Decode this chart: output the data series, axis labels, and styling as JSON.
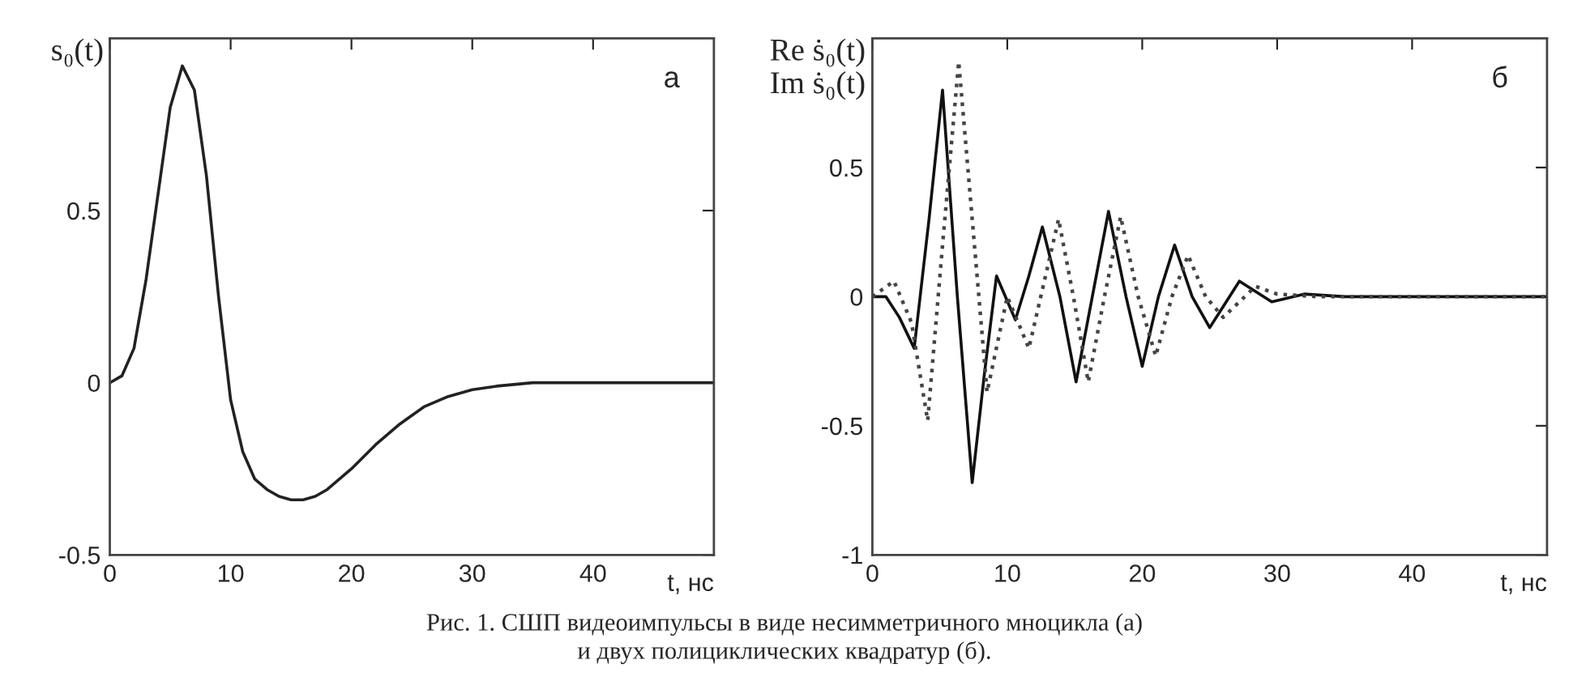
{
  "chart_data": [
    {
      "type": "line",
      "ylabel": "s₀(t)",
      "xlabel": "t, нс",
      "xlim": [
        0,
        50
      ],
      "ylim": [
        -0.5,
        1
      ],
      "xticks": [
        0,
        10,
        20,
        30,
        40
      ],
      "yticks": [
        -0.5,
        0,
        0.5
      ],
      "grid": false,
      "legend": false,
      "series": [
        {
          "color": "#222222",
          "line_style": "solid",
          "x": [
            0,
            1,
            2,
            3,
            4,
            5,
            6,
            7,
            8,
            9,
            10,
            11,
            12,
            13,
            14,
            15,
            16,
            17,
            18,
            20,
            22,
            24,
            26,
            28,
            30,
            32,
            35,
            40,
            50
          ],
          "values": [
            0,
            0.02,
            0.1,
            0.3,
            0.55,
            0.8,
            0.92,
            0.85,
            0.6,
            0.25,
            -0.05,
            -0.2,
            -0.28,
            -0.31,
            -0.33,
            -0.34,
            -0.34,
            -0.33,
            -0.31,
            -0.25,
            -0.18,
            -0.12,
            -0.07,
            -0.04,
            -0.02,
            -0.01,
            0,
            0,
            0
          ]
        }
      ],
      "annotations": [
        "а",
        "Рис. 1. СШП видеоимпульсы в виде несимметричного мноцикла (а)\nи двух полициклических квадратур (б)."
      ]
    },
    {
      "type": "line",
      "ylabel": "Re ṡ₀(t)\nIm ṡ₀(t)",
      "xlabel": "t, нс",
      "xlim": [
        0,
        50
      ],
      "ylim": [
        -1,
        1
      ],
      "xticks": [
        0,
        10,
        20,
        30,
        40
      ],
      "yticks": [
        -1,
        -0.5,
        0,
        0.5
      ],
      "grid": false,
      "legend": false,
      "series": [
        {
          "color": "#111111",
          "line_style": "solid",
          "x": [
            0,
            1,
            2,
            3.1,
            4.2,
            5.2,
            6.3,
            7.4,
            8.3,
            9.2,
            10.6,
            11.6,
            12.6,
            13.9,
            15.1,
            16.3,
            17.5,
            18.8,
            20.0,
            21.2,
            22.4,
            23.7,
            25.0,
            26.1,
            27.2,
            28.4,
            29.6,
            32,
            35,
            50
          ],
          "values": [
            0,
            0.0,
            -0.08,
            -0.2,
            0.3,
            0.8,
            0.0,
            -0.72,
            -0.3,
            0.08,
            -0.09,
            0.08,
            0.27,
            0.0,
            -0.33,
            0.0,
            0.33,
            0.0,
            -0.27,
            0.0,
            0.2,
            0.0,
            -0.12,
            -0.03,
            0.06,
            0.02,
            -0.02,
            0.01,
            0,
            0
          ]
        },
        {
          "color": "#444444",
          "line_style": "dotted",
          "x": [
            0,
            1.6,
            2.9,
            4.1,
            5.2,
            6.4,
            7.4,
            8.5,
            10.0,
            11.6,
            12.7,
            13.8,
            14.9,
            16.0,
            17.2,
            18.4,
            19.7,
            21.0,
            22.2,
            23.4,
            24.7,
            26.0,
            27.2,
            28.4,
            30,
            33,
            50
          ],
          "values": [
            0,
            0.06,
            -0.1,
            -0.48,
            0.2,
            0.91,
            0.3,
            -0.37,
            0.0,
            -0.2,
            0.05,
            0.3,
            0.0,
            -0.33,
            0.0,
            0.31,
            0.0,
            -0.23,
            0.0,
            0.16,
            0.0,
            -0.08,
            -0.02,
            0.04,
            0.01,
            0,
            0
          ]
        }
      ],
      "annotations": [
        "б"
      ]
    }
  ]
}
